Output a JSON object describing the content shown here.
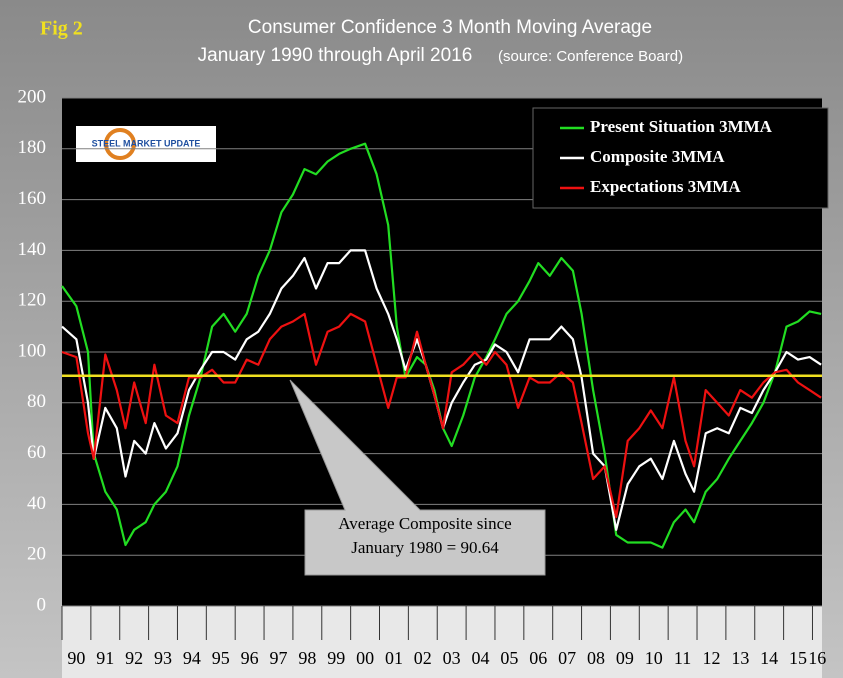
{
  "chart_data": {
    "type": "line",
    "figure_label": "Fig 2",
    "title": "Consumer Confidence 3 Month Moving Average",
    "subtitle": "January 1990 through April 2016",
    "source": "(source: Conference Board)",
    "logo_text": "STEEL MARKET UPDATE",
    "x": [
      1990.0,
      1990.5,
      1990.9,
      1991.1,
      1991.5,
      1991.9,
      1992.2,
      1992.5,
      1992.9,
      1993.2,
      1993.6,
      1994.0,
      1994.4,
      1994.8,
      1995.2,
      1995.6,
      1996.0,
      1996.4,
      1996.8,
      1997.2,
      1997.6,
      1998.0,
      1998.4,
      1998.8,
      1999.2,
      1999.6,
      2000.0,
      2000.5,
      2000.9,
      2001.3,
      2001.6,
      2001.9,
      2002.3,
      2002.6,
      2002.9,
      2003.2,
      2003.5,
      2003.9,
      2004.3,
      2004.7,
      2005.0,
      2005.4,
      2005.8,
      2006.2,
      2006.5,
      2006.9,
      2007.3,
      2007.7,
      2008.0,
      2008.4,
      2008.8,
      2009.2,
      2009.6,
      2010.0,
      2010.4,
      2010.8,
      2011.2,
      2011.6,
      2011.9,
      2012.3,
      2012.7,
      2013.1,
      2013.5,
      2013.9,
      2014.3,
      2014.7,
      2015.1,
      2015.5,
      2015.9,
      2016.3
    ],
    "series": [
      {
        "name": "Present Situation 3MMA",
        "color": "#22dd22",
        "values": [
          126,
          118,
          100,
          60,
          45,
          38,
          24,
          30,
          33,
          40,
          45,
          55,
          75,
          90,
          110,
          115,
          108,
          115,
          130,
          140,
          155,
          162,
          172,
          170,
          175,
          178,
          180,
          182,
          170,
          150,
          110,
          90,
          98,
          95,
          85,
          70,
          63,
          75,
          90,
          98,
          105,
          115,
          120,
          128,
          135,
          130,
          137,
          132,
          115,
          85,
          60,
          28,
          25,
          25,
          25,
          23,
          33,
          38,
          33,
          45,
          50,
          58,
          65,
          72,
          80,
          92,
          110,
          112,
          116,
          115
        ]
      },
      {
        "name": "Composite 3MMA",
        "color": "#ffffff",
        "values": [
          110,
          105,
          80,
          58,
          78,
          70,
          51,
          65,
          60,
          72,
          62,
          68,
          85,
          93,
          100,
          100,
          97,
          105,
          108,
          115,
          125,
          130,
          137,
          125,
          135,
          135,
          140,
          140,
          125,
          115,
          105,
          93,
          105,
          95,
          83,
          70,
          80,
          88,
          95,
          97,
          103,
          100,
          92,
          105,
          105,
          105,
          110,
          105,
          90,
          60,
          55,
          30,
          48,
          55,
          58,
          50,
          65,
          52,
          45,
          68,
          70,
          68,
          78,
          76,
          85,
          92,
          100,
          97,
          98,
          95
        ]
      },
      {
        "name": "Expectations 3MMA",
        "color": "#ee1111",
        "values": [
          100,
          98,
          68,
          58,
          99,
          85,
          70,
          88,
          72,
          95,
          75,
          72,
          90,
          90,
          93,
          88,
          88,
          97,
          95,
          105,
          110,
          112,
          115,
          95,
          108,
          110,
          115,
          112,
          95,
          78,
          90,
          90,
          108,
          95,
          83,
          70,
          92,
          95,
          100,
          95,
          100,
          95,
          78,
          90,
          88,
          88,
          92,
          88,
          72,
          50,
          55,
          35,
          65,
          70,
          77,
          70,
          90,
          65,
          55,
          85,
          80,
          75,
          85,
          82,
          88,
          92,
          93,
          88,
          85,
          82
        ]
      }
    ],
    "xlim": [
      1990,
      2016.33
    ],
    "xticks": [
      {
        "value": 1990,
        "label": "90"
      },
      {
        "value": 1991,
        "label": "91"
      },
      {
        "value": 1992,
        "label": "92"
      },
      {
        "value": 1993,
        "label": "93"
      },
      {
        "value": 1994,
        "label": "94"
      },
      {
        "value": 1995,
        "label": "95"
      },
      {
        "value": 1996,
        "label": "96"
      },
      {
        "value": 1997,
        "label": "97"
      },
      {
        "value": 1998,
        "label": "98"
      },
      {
        "value": 1999,
        "label": "99"
      },
      {
        "value": 2000,
        "label": "00"
      },
      {
        "value": 2001,
        "label": "01"
      },
      {
        "value": 2002,
        "label": "02"
      },
      {
        "value": 2003,
        "label": "03"
      },
      {
        "value": 2004,
        "label": "04"
      },
      {
        "value": 2005,
        "label": "05"
      },
      {
        "value": 2006,
        "label": "06"
      },
      {
        "value": 2007,
        "label": "07"
      },
      {
        "value": 2008,
        "label": "08"
      },
      {
        "value": 2009,
        "label": "09"
      },
      {
        "value": 2010,
        "label": "10"
      },
      {
        "value": 2011,
        "label": "11"
      },
      {
        "value": 2012,
        "label": "12"
      },
      {
        "value": 2013,
        "label": "13"
      },
      {
        "value": 2014,
        "label": "14"
      },
      {
        "value": 2015,
        "label": "15"
      },
      {
        "value": 2016,
        "label": "16"
      }
    ],
    "ylim": [
      0,
      200
    ],
    "yticks": [
      0,
      20,
      40,
      60,
      80,
      100,
      120,
      140,
      160,
      180,
      200
    ],
    "grid": true,
    "legend": "top-right",
    "reference_line": {
      "value": 90.64,
      "color": "#f0e020",
      "label": [
        "Average Composite since",
        "January 1980 = 90.64"
      ]
    }
  }
}
